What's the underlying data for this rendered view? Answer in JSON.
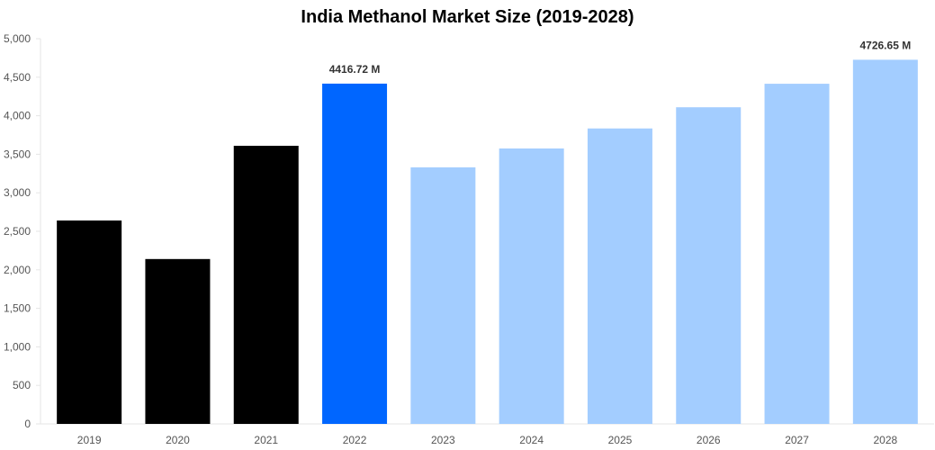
{
  "chart_data": {
    "type": "bar",
    "title": "India Methanol Market Size (2019-2028)",
    "xlabel": "",
    "ylabel": "",
    "categories": [
      "2019",
      "2020",
      "2021",
      "2022",
      "2023",
      "2024",
      "2025",
      "2026",
      "2027",
      "2028"
    ],
    "values": [
      2640,
      2140,
      3610,
      4416.72,
      3330,
      3575,
      3835,
      4110,
      4415,
      4726.65
    ],
    "bar_colors": [
      "#000000",
      "#000000",
      "#000000",
      "#0066ff",
      "#a3cdff",
      "#a3cdff",
      "#a3cdff",
      "#a3cdff",
      "#a3cdff",
      "#a3cdff"
    ],
    "data_labels": [
      {
        "category": "2022",
        "text": "4416.72 M"
      },
      {
        "category": "2028",
        "text": "4726.65 M"
      }
    ],
    "ylim": [
      0,
      5000
    ],
    "yticks": [
      0,
      500,
      1000,
      1500,
      2000,
      2500,
      3000,
      3500,
      4000,
      4500,
      5000
    ],
    "ytick_labels": [
      "0",
      "500",
      "1,000",
      "1,500",
      "2,000",
      "2,500",
      "3,000",
      "3,500",
      "4,000",
      "4,500",
      "5,000"
    ],
    "grid": false,
    "legend": "none"
  }
}
